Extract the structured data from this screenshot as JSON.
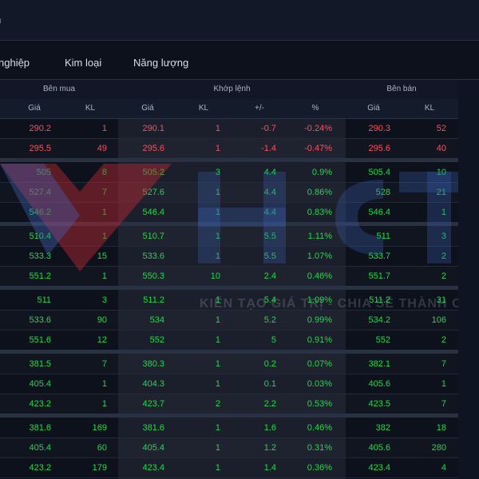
{
  "header": {
    "crumb": "n"
  },
  "tabs": [
    {
      "label": "nghiệp"
    },
    {
      "label": "Kim loại"
    },
    {
      "label": "Năng lượng"
    }
  ],
  "table": {
    "group_headers": {
      "buy": "Bên mua",
      "match": "Khớp lệnh",
      "sell": "Bên bán"
    },
    "col_headers": [
      "Giá",
      "KL",
      "Giá",
      "KL",
      "+/-",
      "%",
      "Giá",
      "KL"
    ],
    "rows": [
      {
        "b_price": "290.2",
        "b_vol": "1",
        "m_price": "290.1",
        "m_vol": "1",
        "chg": "-0.7",
        "pct": "-0.24%",
        "s_price": "290.3",
        "s_vol": "52",
        "color": "red"
      },
      {
        "b_price": "295.5",
        "b_vol": "49",
        "m_price": "295.6",
        "m_vol": "1",
        "chg": "-1.4",
        "pct": "-0.47%",
        "s_price": "295.6",
        "s_vol": "40",
        "color": "red"
      },
      {
        "b_price": "505",
        "b_vol": "8",
        "m_price": "505.2",
        "m_vol": "3",
        "chg": "4.4",
        "pct": "0.9%",
        "s_price": "505.4",
        "s_vol": "10",
        "color": "green"
      },
      {
        "b_price": "527.4",
        "b_vol": "7",
        "m_price": "527.6",
        "m_vol": "1",
        "chg": "4.4",
        "pct": "0.86%",
        "s_price": "528",
        "s_vol": "21",
        "color": "green"
      },
      {
        "b_price": "546.2",
        "b_vol": "1",
        "m_price": "546.4",
        "m_vol": "1",
        "chg": "4.4",
        "pct": "0.83%",
        "s_price": "546.4",
        "s_vol": "1",
        "color": "green"
      },
      {
        "b_price": "510.4",
        "b_vol": "1",
        "m_price": "510.7",
        "m_vol": "1",
        "chg": "5.5",
        "pct": "1.11%",
        "s_price": "511",
        "s_vol": "3",
        "color": "green"
      },
      {
        "b_price": "533.3",
        "b_vol": "15",
        "m_price": "533.6",
        "m_vol": "1",
        "chg": "5.5",
        "pct": "1.07%",
        "s_price": "533.7",
        "s_vol": "2",
        "color": "green"
      },
      {
        "b_price": "551.2",
        "b_vol": "1",
        "m_price": "550.3",
        "m_vol": "10",
        "chg": "2.4",
        "pct": "0.46%",
        "s_price": "551.7",
        "s_vol": "2",
        "color": "green"
      },
      {
        "b_price": "511",
        "b_vol": "3",
        "m_price": "511.2",
        "m_vol": "1",
        "chg": "5.4",
        "pct": "1.09%",
        "s_price": "511.2",
        "s_vol": "31",
        "color": "green"
      },
      {
        "b_price": "533.6",
        "b_vol": "90",
        "m_price": "534",
        "m_vol": "1",
        "chg": "5.2",
        "pct": "0.99%",
        "s_price": "534.2",
        "s_vol": "106",
        "color": "green"
      },
      {
        "b_price": "551.6",
        "b_vol": "12",
        "m_price": "552",
        "m_vol": "1",
        "chg": "5",
        "pct": "0.91%",
        "s_price": "552",
        "s_vol": "2",
        "color": "green"
      },
      {
        "b_price": "381.5",
        "b_vol": "7",
        "m_price": "380.3",
        "m_vol": "1",
        "chg": "0.2",
        "pct": "0.07%",
        "s_price": "382.1",
        "s_vol": "7",
        "color": "green"
      },
      {
        "b_price": "405.4",
        "b_vol": "1",
        "m_price": "404.3",
        "m_vol": "1",
        "chg": "0.1",
        "pct": "0.03%",
        "s_price": "405.6",
        "s_vol": "1",
        "color": "green"
      },
      {
        "b_price": "423.2",
        "b_vol": "1",
        "m_price": "423.7",
        "m_vol": "2",
        "chg": "2.2",
        "pct": "0.53%",
        "s_price": "423.5",
        "s_vol": "7",
        "color": "green"
      },
      {
        "b_price": "381.6",
        "b_vol": "169",
        "m_price": "381.6",
        "m_vol": "1",
        "chg": "1.6",
        "pct": "0.46%",
        "s_price": "382",
        "s_vol": "18",
        "color": "green"
      },
      {
        "b_price": "405.4",
        "b_vol": "60",
        "m_price": "405.4",
        "m_vol": "1",
        "chg": "1.2",
        "pct": "0.31%",
        "s_price": "405.6",
        "s_vol": "280",
        "color": "green"
      },
      {
        "b_price": "423.2",
        "b_vol": "179",
        "m_price": "423.4",
        "m_vol": "1",
        "chg": "1.4",
        "pct": "0.36%",
        "s_price": "423.4",
        "s_vol": "4",
        "color": "green"
      }
    ]
  },
  "watermark": {
    "logo": "HCT",
    "tagline": "KIẾN TẠO GIÁ TRỊ - CHIA SẺ THÀNH C"
  },
  "colors": {
    "up": "#21d94b",
    "down": "#ff4d5a",
    "bg": "#0d111c"
  }
}
